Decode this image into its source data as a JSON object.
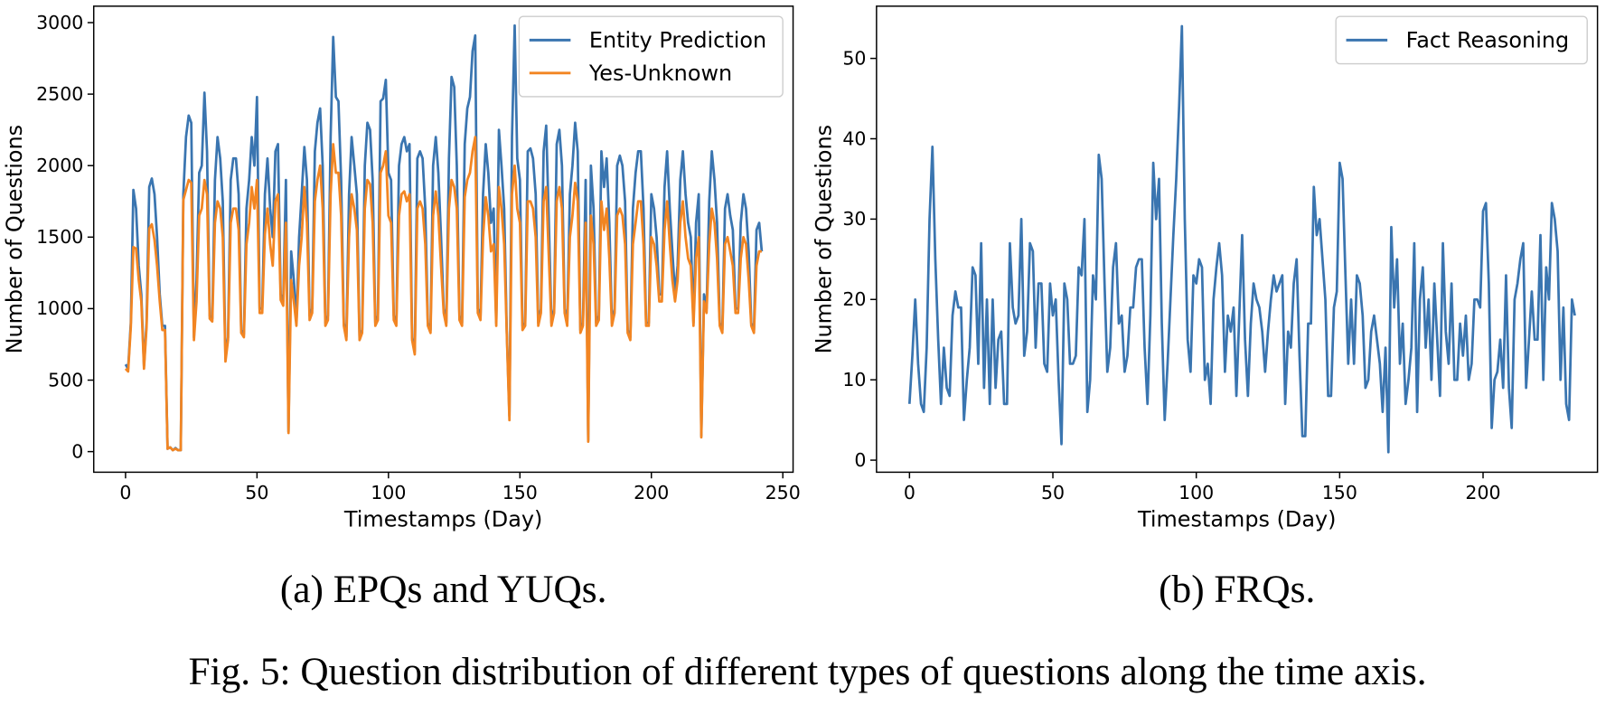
{
  "chart_data": [
    {
      "type": "line",
      "caption": "(a) EPQs and YUQs.",
      "xlabel": "Timestamps (Day)",
      "ylabel": "Number of Questions",
      "legend": "upper right",
      "xlim": [
        -12.1,
        253.9
      ],
      "ylim": [
        -144,
        3115
      ],
      "xticks": [
        0,
        50,
        100,
        150,
        200,
        250
      ],
      "yticks": [
        0,
        500,
        1000,
        1500,
        2000,
        2500,
        3000
      ],
      "x": [
        0,
        1,
        2,
        3,
        4,
        5,
        6,
        7,
        8,
        9,
        10,
        11,
        12,
        13,
        14,
        15,
        16,
        17,
        18,
        19,
        20,
        21,
        22,
        23,
        24,
        25,
        26,
        27,
        28,
        29,
        30,
        31,
        32,
        33,
        34,
        35,
        36,
        37,
        38,
        39,
        40,
        41,
        42,
        43,
        44,
        45,
        46,
        47,
        48,
        49,
        50,
        51,
        52,
        53,
        54,
        55,
        56,
        57,
        58,
        59,
        60,
        61,
        62,
        63,
        64,
        65,
        66,
        67,
        68,
        69,
        70,
        71,
        72,
        73,
        74,
        75,
        76,
        77,
        78,
        79,
        80,
        81,
        82,
        83,
        84,
        85,
        86,
        87,
        88,
        89,
        90,
        91,
        92,
        93,
        94,
        95,
        96,
        97,
        98,
        99,
        100,
        101,
        102,
        103,
        104,
        105,
        106,
        107,
        108,
        109,
        110,
        111,
        112,
        113,
        114,
        115,
        116,
        117,
        118,
        119,
        120,
        121,
        122,
        123,
        124,
        125,
        126,
        127,
        128,
        129,
        130,
        131,
        132,
        133,
        134,
        135,
        136,
        137,
        138,
        139,
        140,
        141,
        142,
        143,
        144,
        145,
        146,
        147,
        148,
        149,
        150,
        151,
        152,
        153,
        154,
        155,
        156,
        157,
        158,
        159,
        160,
        161,
        162,
        163,
        164,
        165,
        166,
        167,
        168,
        169,
        170,
        171,
        172,
        173,
        174,
        175,
        176,
        177,
        178,
        179,
        180,
        181,
        182,
        183,
        184,
        185,
        186,
        187,
        188,
        189,
        190,
        191,
        192,
        193,
        194,
        195,
        196,
        197,
        198,
        199,
        200,
        201,
        202,
        203,
        204,
        205,
        206,
        207,
        208,
        209,
        210,
        211,
        212,
        213,
        214,
        215,
        216,
        217,
        218,
        219,
        220,
        221,
        222,
        223,
        224,
        225,
        226,
        227,
        228,
        229,
        230,
        231,
        232,
        233,
        234,
        235,
        236,
        237,
        238,
        239,
        240,
        241,
        242
      ],
      "series": [
        {
          "name": "Entity Prediction",
          "color": "#3a75b0",
          "values": [
            610,
            580,
            900,
            1830,
            1700,
            1300,
            1100,
            600,
            900,
            1850,
            1910,
            1800,
            1500,
            1100,
            880,
            880,
            20,
            30,
            10,
            25,
            10,
            10,
            1800,
            2200,
            2350,
            2300,
            800,
            1200,
            1950,
            2000,
            2510,
            2100,
            950,
            930,
            1900,
            2200,
            2050,
            1750,
            650,
            800,
            1900,
            2050,
            2050,
            1800,
            850,
            820,
            1700,
            1900,
            2200,
            2000,
            2480,
            1000,
            1000,
            1800,
            2050,
            1700,
            1500,
            2100,
            2150,
            1100,
            1050,
            1900,
            140,
            1400,
            1200,
            900,
            1500,
            1800,
            2130,
            1900,
            950,
            1000,
            2100,
            2300,
            2400,
            2000,
            900,
            950,
            2200,
            2900,
            2480,
            2450,
            1900,
            900,
            800,
            1800,
            2200,
            2000,
            1800,
            800,
            850,
            2000,
            2300,
            2250,
            1900,
            900,
            950,
            2450,
            2470,
            2600,
            1950,
            1900,
            950,
            900,
            2000,
            2150,
            2200,
            2100,
            2150,
            800,
            700,
            2050,
            2100,
            2050,
            1700,
            900,
            850,
            2000,
            2200,
            1950,
            1500,
            1000,
            900,
            2050,
            2620,
            2550,
            2000,
            950,
            900,
            2150,
            2400,
            2480,
            2800,
            2910,
            1000,
            950,
            1800,
            2150,
            1950,
            1600,
            1700,
            900,
            2250,
            2000,
            1700,
            850,
            250,
            2200,
            2980,
            2050,
            1900,
            880,
            900,
            2100,
            2120,
            2050,
            1800,
            900,
            1000,
            2100,
            2280,
            1600,
            900,
            1000,
            2150,
            2250,
            2000,
            1000,
            900,
            1800,
            2000,
            2300,
            2100,
            850,
            900,
            1900,
            80,
            2000,
            1700,
            900,
            950,
            2100,
            1850,
            2050,
            1600,
            900,
            1000,
            2000,
            2070,
            2000,
            1750,
            850,
            800,
            1700,
            1950,
            2100,
            2100,
            1700,
            900,
            900,
            1800,
            1700,
            1500,
            1100,
            1100,
            1850,
            2100,
            1700,
            1400,
            1100,
            1300,
            1900,
            2100,
            1800,
            1600,
            1500,
            900,
            1600,
            1800,
            110,
            1100,
            1000,
            1750,
            2100,
            1900,
            1600,
            900,
            850,
            1700,
            1800,
            1650,
            1550,
            1000,
            1000,
            1600,
            1800,
            1700,
            1400,
            900,
            850,
            1550,
            1600,
            1400
          ]
        },
        {
          "name": "Yes-Unknown",
          "color": "#f28522",
          "values": [
            580,
            560,
            870,
            1430,
            1420,
            1200,
            1050,
            580,
            870,
            1560,
            1590,
            1480,
            1300,
            1050,
            850,
            850,
            20,
            30,
            10,
            20,
            10,
            10,
            1760,
            1830,
            1900,
            1880,
            780,
            1050,
            1650,
            1700,
            1900,
            1800,
            930,
            910,
            1600,
            1750,
            1700,
            1500,
            630,
            780,
            1600,
            1700,
            1700,
            1550,
            830,
            800,
            1450,
            1600,
            1850,
            1700,
            1900,
            970,
            970,
            1520,
            1700,
            1450,
            1300,
            1750,
            1800,
            1060,
            1020,
            1600,
            130,
            1200,
            1050,
            880,
            1300,
            1500,
            1850,
            1600,
            920,
            970,
            1750,
            1900,
            2000,
            1700,
            880,
            920,
            1800,
            2150,
            1950,
            1950,
            1650,
            880,
            780,
            1500,
            1800,
            1700,
            1550,
            780,
            830,
            1700,
            1900,
            1870,
            1600,
            880,
            920,
            1950,
            2000,
            2100,
            1650,
            1600,
            920,
            880,
            1650,
            1800,
            1820,
            1750,
            1800,
            780,
            680,
            1700,
            1750,
            1700,
            1450,
            880,
            830,
            1650,
            1820,
            1650,
            1300,
            970,
            880,
            1700,
            1900,
            1850,
            1700,
            920,
            880,
            1780,
            1900,
            1950,
            2100,
            2200,
            970,
            920,
            1500,
            1780,
            1650,
            1400,
            1450,
            880,
            1850,
            1700,
            1450,
            830,
            220,
            1800,
            2000,
            1700,
            1600,
            850,
            880,
            1750,
            1750,
            1700,
            1500,
            880,
            970,
            1750,
            1850,
            1350,
            880,
            970,
            1750,
            1850,
            1700,
            970,
            880,
            1500,
            1650,
            1880,
            1750,
            830,
            880,
            1600,
            70,
            1650,
            1450,
            880,
            920,
            1750,
            1550,
            1700,
            1350,
            880,
            970,
            1650,
            1700,
            1650,
            1450,
            830,
            780,
            1450,
            1600,
            1750,
            1750,
            1450,
            880,
            880,
            1500,
            1450,
            1300,
            1050,
            1050,
            1550,
            1750,
            1450,
            1200,
            1050,
            1200,
            1600,
            1750,
            1500,
            1350,
            1300,
            880,
            1350,
            1500,
            100,
            1050,
            970,
            1450,
            1700,
            1600,
            1350,
            880,
            830,
            1450,
            1500,
            1400,
            1300,
            970,
            970,
            1350,
            1500,
            1450,
            1200,
            880,
            830,
            1300,
            1400,
            1400
          ]
        }
      ]
    },
    {
      "type": "line",
      "caption": "(b) FRQs.",
      "xlabel": "Timestamps (Day)",
      "ylabel": "Number of Questions",
      "legend": "upper right",
      "xlim": [
        -11.5,
        239.9
      ],
      "ylim": [
        -1.5,
        56.5
      ],
      "xticks": [
        0,
        50,
        100,
        150,
        200
      ],
      "yticks": [
        0,
        10,
        20,
        30,
        40,
        50
      ],
      "x": [
        0,
        1,
        2,
        3,
        4,
        5,
        6,
        7,
        8,
        9,
        10,
        11,
        12,
        13,
        14,
        15,
        16,
        17,
        18,
        19,
        20,
        21,
        22,
        23,
        24,
        25,
        26,
        27,
        28,
        29,
        30,
        31,
        32,
        33,
        34,
        35,
        36,
        37,
        38,
        39,
        40,
        41,
        42,
        43,
        44,
        45,
        46,
        47,
        48,
        49,
        50,
        51,
        52,
        53,
        54,
        55,
        56,
        57,
        58,
        59,
        60,
        61,
        62,
        63,
        64,
        65,
        66,
        67,
        68,
        69,
        70,
        71,
        72,
        73,
        74,
        75,
        76,
        77,
        78,
        79,
        80,
        81,
        82,
        83,
        84,
        85,
        86,
        87,
        88,
        89,
        90,
        91,
        92,
        93,
        94,
        95,
        96,
        97,
        98,
        99,
        100,
        101,
        102,
        103,
        104,
        105,
        106,
        107,
        108,
        109,
        110,
        111,
        112,
        113,
        114,
        115,
        116,
        117,
        118,
        119,
        120,
        121,
        122,
        123,
        124,
        125,
        126,
        127,
        128,
        129,
        130,
        131,
        132,
        133,
        134,
        135,
        136,
        137,
        138,
        139,
        140,
        141,
        142,
        143,
        144,
        145,
        146,
        147,
        148,
        149,
        150,
        151,
        152,
        153,
        154,
        155,
        156,
        157,
        158,
        159,
        160,
        161,
        162,
        163,
        164,
        165,
        166,
        167,
        168,
        169,
        170,
        171,
        172,
        173,
        174,
        175,
        176,
        177,
        178,
        179,
        180,
        181,
        182,
        183,
        184,
        185,
        186,
        187,
        188,
        189,
        190,
        191,
        192,
        193,
        194,
        195,
        196,
        197,
        198,
        199,
        200,
        201,
        202,
        203,
        204,
        205,
        206,
        207,
        208,
        209,
        210,
        211,
        212,
        213,
        214,
        215,
        216,
        217,
        218,
        219,
        220,
        221,
        222,
        223,
        224,
        225,
        226,
        227,
        228,
        229,
        230,
        231,
        232
      ],
      "series": [
        {
          "name": "Fact Reasoning",
          "color": "#3a75b0",
          "values": [
            7,
            13,
            20,
            12,
            7,
            6,
            14,
            30,
            39,
            25,
            15,
            7,
            14,
            9,
            8,
            18,
            21,
            19,
            19,
            5,
            10,
            14,
            24,
            23,
            12,
            27,
            9,
            20,
            7,
            20,
            9,
            15,
            16,
            7,
            7,
            27,
            19,
            17,
            18,
            30,
            13,
            16,
            27,
            26,
            14,
            22,
            22,
            12,
            11,
            22,
            18,
            20,
            10,
            2,
            22,
            20,
            12,
            12,
            13,
            24,
            23,
            30,
            6,
            10,
            23,
            20,
            38,
            35,
            22,
            11,
            14,
            24,
            27,
            17,
            18,
            11,
            13,
            19,
            19,
            24,
            25,
            25,
            14,
            7,
            18,
            37,
            30,
            35,
            17,
            5,
            12,
            20,
            28,
            35,
            44,
            54,
            30,
            15,
            11,
            23,
            22,
            25,
            24,
            10,
            12,
            7,
            20,
            24,
            27,
            23,
            11,
            18,
            16,
            19,
            8,
            18,
            28,
            15,
            8,
            17,
            22,
            20,
            19,
            16,
            11,
            16,
            20,
            23,
            21,
            22,
            23,
            7,
            16,
            14,
            22,
            25,
            13,
            3,
            3,
            17,
            17,
            34,
            28,
            30,
            25,
            20,
            8,
            8,
            19,
            21,
            37,
            35,
            23,
            12,
            20,
            12,
            23,
            22,
            18,
            9,
            10,
            16,
            18,
            15,
            12,
            6,
            14,
            1,
            29,
            19,
            25,
            12,
            17,
            7,
            10,
            14,
            27,
            6,
            20,
            24,
            14,
            20,
            10,
            22,
            15,
            8,
            27,
            16,
            12,
            22,
            10,
            10,
            17,
            13,
            18,
            10,
            12,
            20,
            20,
            19,
            31,
            32,
            22,
            4,
            10,
            11,
            15,
            9,
            23,
            9,
            4,
            20,
            22,
            25,
            27,
            9,
            15,
            21,
            15,
            15,
            28,
            10,
            24,
            20,
            32,
            30,
            26,
            10,
            19,
            7,
            5,
            20,
            18
          ]
        }
      ]
    }
  ],
  "figure_caption": "Fig. 5: Question distribution of different types of questions along the time axis."
}
